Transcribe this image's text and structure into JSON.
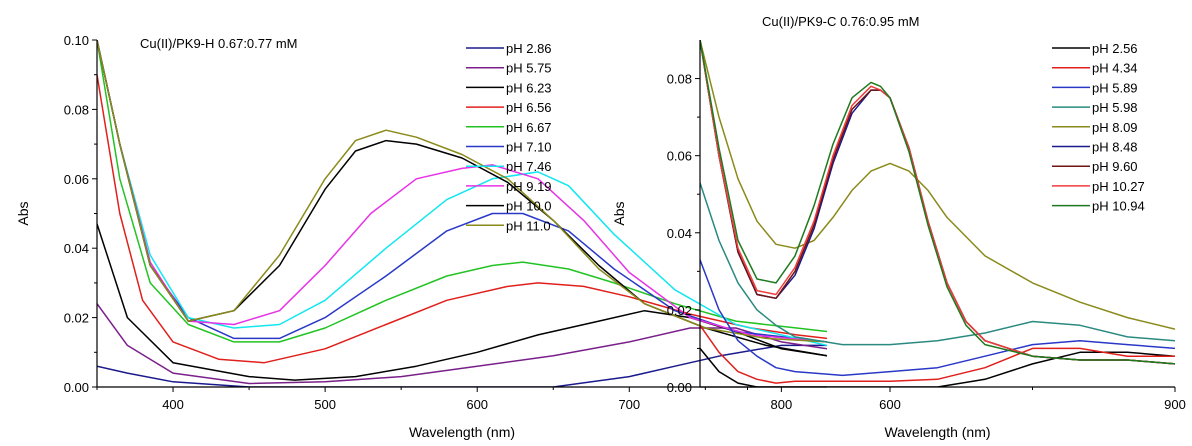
{
  "chart_data": [
    {
      "type": "line",
      "title": "Cu(II)/PK9-H  0.67:0.77 mM",
      "xlabel": "Wavelength (nm)",
      "ylabel": "Abs",
      "xlim": [
        350,
        830
      ],
      "ylim": [
        0,
        0.1
      ],
      "xticks": [
        "400",
        "500",
        "600",
        "700",
        "800"
      ],
      "yticks": [
        "0.00",
        "0.02",
        "0.04",
        "0.06",
        "0.08",
        "0.10"
      ],
      "legend_position": "top-right",
      "series": [
        {
          "name": "pH 2.86",
          "color": "#1a1a8c",
          "x": [
            350,
            370,
            400,
            450,
            500,
            550,
            600,
            650,
            700,
            730,
            760,
            800,
            830
          ],
          "y": [
            0.006,
            0.004,
            0.0015,
            0,
            0,
            0,
            0,
            0,
            0.003,
            0.006,
            0.009,
            0.012,
            0.012
          ]
        },
        {
          "name": "pH 5.75",
          "color": "#7a1f8a",
          "x": [
            350,
            370,
            400,
            450,
            500,
            550,
            600,
            650,
            700,
            740,
            770,
            800,
            830
          ],
          "y": [
            0.024,
            0.012,
            0.004,
            0.001,
            0.0015,
            0.003,
            0.006,
            0.009,
            0.013,
            0.017,
            0.017,
            0.013,
            0.011
          ]
        },
        {
          "name": "pH 6.23",
          "color": "#000000",
          "x": [
            350,
            370,
            400,
            450,
            480,
            520,
            560,
            600,
            640,
            680,
            710,
            740,
            770,
            800,
            830
          ],
          "y": [
            0.047,
            0.02,
            0.007,
            0.003,
            0.002,
            0.003,
            0.006,
            0.01,
            0.015,
            0.019,
            0.022,
            0.02,
            0.016,
            0.011,
            0.009
          ]
        },
        {
          "name": "pH 6.56",
          "color": "#e0201c",
          "x": [
            350,
            365,
            380,
            400,
            430,
            460,
            500,
            540,
            580,
            620,
            640,
            670,
            700,
            740,
            780,
            810,
            830
          ],
          "y": [
            0.09,
            0.05,
            0.025,
            0.013,
            0.008,
            0.007,
            0.011,
            0.018,
            0.025,
            0.029,
            0.03,
            0.029,
            0.026,
            0.021,
            0.017,
            0.015,
            0.014
          ]
        },
        {
          "name": "pH 6.67",
          "color": "#22c322",
          "x": [
            350,
            365,
            385,
            410,
            440,
            470,
            500,
            540,
            580,
            610,
            630,
            660,
            690,
            730,
            770,
            810,
            830
          ],
          "y": [
            0.1,
            0.06,
            0.03,
            0.018,
            0.013,
            0.013,
            0.017,
            0.025,
            0.032,
            0.035,
            0.036,
            0.034,
            0.03,
            0.024,
            0.019,
            0.017,
            0.016
          ]
        },
        {
          "name": "pH 7.10",
          "color": "#2a38c8",
          "x": [
            350,
            365,
            385,
            410,
            440,
            470,
            500,
            540,
            580,
            610,
            630,
            660,
            690,
            730,
            770,
            810,
            830
          ],
          "y": [
            0.1,
            0.07,
            0.035,
            0.02,
            0.014,
            0.014,
            0.02,
            0.032,
            0.045,
            0.05,
            0.05,
            0.045,
            0.034,
            0.022,
            0.016,
            0.014,
            0.013
          ]
        },
        {
          "name": "pH 7.46",
          "color": "#12e6f0",
          "x": [
            350,
            365,
            385,
            410,
            440,
            470,
            500,
            540,
            580,
            610,
            640,
            660,
            690,
            730,
            770,
            810,
            830
          ],
          "y": [
            0.1,
            0.07,
            0.038,
            0.02,
            0.017,
            0.018,
            0.025,
            0.04,
            0.054,
            0.06,
            0.062,
            0.058,
            0.044,
            0.028,
            0.018,
            0.014,
            0.012
          ]
        },
        {
          "name": "pH 9.19",
          "color": "#e633e6",
          "x": [
            350,
            365,
            385,
            410,
            440,
            470,
            500,
            530,
            560,
            590,
            610,
            640,
            670,
            700,
            740,
            780,
            830
          ],
          "y": [
            0.1,
            0.07,
            0.036,
            0.019,
            0.018,
            0.022,
            0.035,
            0.05,
            0.06,
            0.063,
            0.064,
            0.06,
            0.048,
            0.033,
            0.02,
            0.015,
            0.013
          ]
        },
        {
          "name": "pH 10.0",
          "color": "#000000",
          "x": [
            350,
            365,
            385,
            410,
            440,
            470,
            500,
            520,
            540,
            560,
            590,
            620,
            650,
            680,
            710,
            750,
            790,
            830
          ],
          "y": [
            0.1,
            0.07,
            0.035,
            0.019,
            0.022,
            0.035,
            0.057,
            0.068,
            0.071,
            0.07,
            0.066,
            0.059,
            0.048,
            0.035,
            0.024,
            0.017,
            0.012,
            0.009
          ]
        },
        {
          "name": "pH 11.0",
          "color": "#8a8a1a",
          "x": [
            350,
            365,
            385,
            410,
            440,
            470,
            500,
            520,
            540,
            560,
            590,
            620,
            650,
            680,
            710,
            750,
            790,
            830
          ],
          "y": [
            0.1,
            0.07,
            0.035,
            0.019,
            0.022,
            0.038,
            0.06,
            0.071,
            0.074,
            0.072,
            0.067,
            0.06,
            0.048,
            0.034,
            0.024,
            0.017,
            0.014,
            0.013
          ]
        }
      ]
    },
    {
      "type": "line",
      "title": "Cu(II)/PK9-C  0.76:0.95 mM",
      "xlabel": "Wavelength (nm)",
      "ylabel": "Abs",
      "xlim": [
        400,
        900
      ],
      "ylim": [
        0,
        0.09
      ],
      "xticks": [
        "600",
        "900"
      ],
      "yticks": [
        "0.00",
        "0.02",
        "0.04",
        "0.06",
        "0.08"
      ],
      "legend_position": "top-right",
      "series": [
        {
          "name": "pH 2.56",
          "color": "#000000",
          "x": [
            400,
            420,
            440,
            460,
            480,
            500,
            550,
            600,
            650,
            700,
            750,
            800,
            850,
            900
          ],
          "y": [
            0.01,
            0.004,
            0.001,
            0,
            0,
            0,
            0,
            0,
            0,
            0.002,
            0.006,
            0.009,
            0.009,
            0.008
          ]
        },
        {
          "name": "pH 4.34",
          "color": "#e0201c",
          "x": [
            400,
            420,
            440,
            460,
            480,
            500,
            550,
            600,
            650,
            700,
            750,
            800,
            850,
            900
          ],
          "y": [
            0.016,
            0.009,
            0.004,
            0.002,
            0.001,
            0.0015,
            0.0015,
            0.0015,
            0.002,
            0.005,
            0.01,
            0.01,
            0.008,
            0.008
          ]
        },
        {
          "name": "pH 5.89",
          "color": "#2a38c8",
          "x": [
            400,
            420,
            440,
            460,
            480,
            500,
            550,
            600,
            650,
            700,
            750,
            800,
            850,
            900
          ],
          "y": [
            0.033,
            0.02,
            0.012,
            0.008,
            0.005,
            0.004,
            0.003,
            0.004,
            0.005,
            0.008,
            0.011,
            0.012,
            0.011,
            0.01
          ]
        },
        {
          "name": "pH 5.98",
          "color": "#2a8a80",
          "x": [
            400,
            420,
            440,
            460,
            480,
            500,
            550,
            600,
            650,
            700,
            750,
            800,
            850,
            900
          ],
          "y": [
            0.053,
            0.038,
            0.027,
            0.02,
            0.016,
            0.013,
            0.011,
            0.011,
            0.012,
            0.014,
            0.017,
            0.016,
            0.013,
            0.012
          ]
        },
        {
          "name": "pH 8.09",
          "color": "#8a8a1a",
          "x": [
            400,
            420,
            440,
            460,
            480,
            500,
            520,
            540,
            560,
            580,
            600,
            620,
            640,
            660,
            680,
            700,
            750,
            800,
            850,
            900
          ],
          "y": [
            0.09,
            0.07,
            0.054,
            0.043,
            0.037,
            0.036,
            0.038,
            0.044,
            0.051,
            0.056,
            0.058,
            0.056,
            0.051,
            0.044,
            0.039,
            0.034,
            0.027,
            0.022,
            0.018,
            0.015
          ]
        },
        {
          "name": "pH 8.48",
          "color": "#1a1a8c",
          "x": [
            400,
            420,
            440,
            460,
            480,
            500,
            520,
            540,
            560,
            580,
            590,
            600,
            620,
            640,
            660,
            680,
            700,
            750,
            800,
            850,
            900
          ],
          "y": [
            0.09,
            0.06,
            0.035,
            0.024,
            0.023,
            0.029,
            0.041,
            0.058,
            0.071,
            0.077,
            0.077,
            0.075,
            0.062,
            0.043,
            0.027,
            0.017,
            0.012,
            0.008,
            0.007,
            0.007,
            0.006
          ]
        },
        {
          "name": "pH 9.60",
          "color": "#6e1414",
          "x": [
            400,
            420,
            440,
            460,
            480,
            500,
            520,
            540,
            560,
            580,
            590,
            600,
            620,
            640,
            660,
            680,
            700,
            750,
            800,
            850,
            900
          ],
          "y": [
            0.09,
            0.06,
            0.035,
            0.024,
            0.023,
            0.03,
            0.042,
            0.059,
            0.072,
            0.077,
            0.077,
            0.075,
            0.062,
            0.043,
            0.027,
            0.017,
            0.012,
            0.008,
            0.007,
            0.007,
            0.006
          ]
        },
        {
          "name": "pH 10.27",
          "color": "#f03c3c",
          "x": [
            400,
            420,
            440,
            460,
            480,
            500,
            520,
            540,
            560,
            580,
            590,
            600,
            620,
            640,
            660,
            680,
            700,
            750,
            800,
            850,
            900
          ],
          "y": [
            0.09,
            0.06,
            0.036,
            0.025,
            0.024,
            0.031,
            0.043,
            0.06,
            0.073,
            0.078,
            0.077,
            0.075,
            0.062,
            0.043,
            0.027,
            0.017,
            0.012,
            0.008,
            0.007,
            0.007,
            0.006
          ]
        },
        {
          "name": "pH 10.94",
          "color": "#1e7a1e",
          "x": [
            400,
            420,
            440,
            460,
            480,
            500,
            520,
            540,
            560,
            580,
            590,
            600,
            620,
            640,
            660,
            680,
            700,
            750,
            800,
            850,
            900
          ],
          "y": [
            0.09,
            0.062,
            0.038,
            0.028,
            0.027,
            0.034,
            0.047,
            0.063,
            0.075,
            0.079,
            0.078,
            0.075,
            0.061,
            0.042,
            0.026,
            0.016,
            0.011,
            0.008,
            0.007,
            0.007,
            0.006
          ]
        }
      ]
    }
  ]
}
